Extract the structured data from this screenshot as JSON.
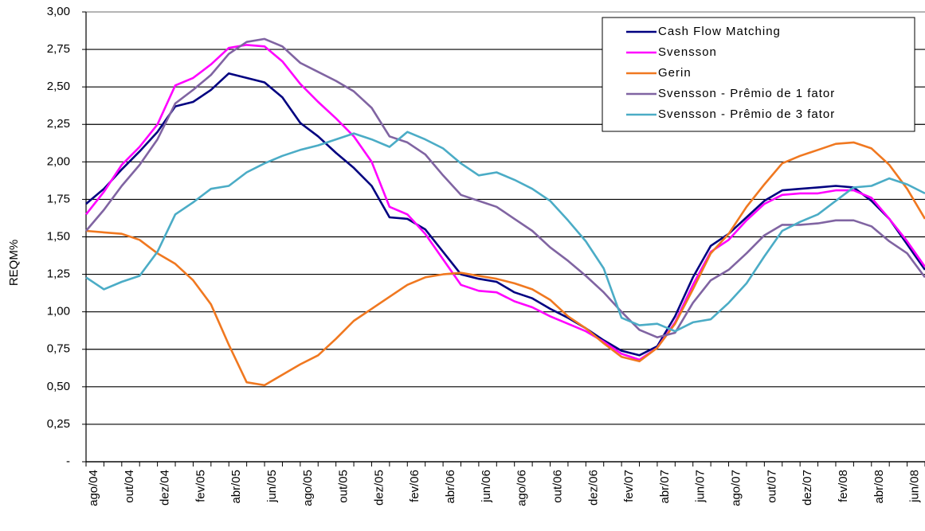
{
  "chart_data": {
    "type": "line",
    "ylabel": "REQM%",
    "categories": [
      "ago/04",
      null,
      "out/04",
      null,
      "dez/04",
      null,
      "fev/05",
      null,
      "abr/05",
      null,
      "jun/05",
      null,
      "ago/05",
      null,
      "out/05",
      null,
      "dez/05",
      null,
      "fev/06",
      null,
      "abr/06",
      null,
      "jun/06",
      null,
      "ago/06",
      null,
      "out/06",
      null,
      "dez/06",
      null,
      "fev/07",
      null,
      "abr/07",
      null,
      "jun/07",
      null,
      "ago/07",
      null,
      "out/07",
      null,
      "dez/07",
      null,
      "fev/08",
      null,
      "abr/08",
      null,
      "jun/08",
      null
    ],
    "series": [
      {
        "name": "Cash Flow Matching",
        "color": "#000080",
        "values": [
          1.72,
          1.82,
          1.95,
          2.07,
          2.2,
          2.37,
          2.4,
          2.48,
          2.59,
          2.56,
          2.53,
          2.43,
          2.26,
          2.17,
          2.06,
          1.96,
          1.84,
          1.63,
          1.62,
          1.55,
          1.4,
          1.25,
          1.22,
          1.2,
          1.13,
          1.09,
          1.02,
          0.96,
          0.89,
          0.81,
          0.74,
          0.71,
          0.77,
          0.97,
          1.23,
          1.44,
          1.52,
          1.63,
          1.74,
          1.81,
          1.82,
          1.83,
          1.84,
          1.83,
          1.74,
          1.62,
          1.45,
          1.28
        ]
      },
      {
        "name": "Svensson",
        "color": "#ff00ff",
        "values": [
          1.65,
          1.8,
          1.98,
          2.1,
          2.25,
          2.51,
          2.56,
          2.65,
          2.76,
          2.78,
          2.77,
          2.67,
          2.52,
          2.4,
          2.29,
          2.17,
          2.0,
          1.7,
          1.65,
          1.52,
          1.35,
          1.18,
          1.14,
          1.13,
          1.07,
          1.03,
          0.97,
          0.92,
          0.87,
          0.8,
          0.72,
          0.68,
          0.76,
          0.93,
          1.18,
          1.4,
          1.48,
          1.61,
          1.72,
          1.78,
          1.79,
          1.79,
          1.81,
          1.81,
          1.76,
          1.62,
          1.47,
          1.3
        ]
      },
      {
        "name": "Gerin",
        "color": "#f07820",
        "values": [
          1.54,
          1.53,
          1.52,
          1.48,
          1.39,
          1.32,
          1.21,
          1.05,
          0.78,
          0.53,
          0.51,
          0.58,
          0.65,
          0.71,
          0.82,
          0.94,
          1.02,
          1.1,
          1.18,
          1.23,
          1.25,
          1.26,
          1.24,
          1.22,
          1.19,
          1.15,
          1.08,
          0.97,
          0.89,
          0.79,
          0.7,
          0.67,
          0.76,
          0.92,
          1.15,
          1.39,
          1.52,
          1.7,
          1.85,
          1.99,
          2.04,
          2.08,
          2.12,
          2.13,
          2.09,
          1.98,
          1.82,
          1.62
        ]
      },
      {
        "name": "Svensson - Prêmio de 1 fator",
        "color": "#8064a2",
        "values": [
          1.54,
          1.68,
          1.84,
          1.98,
          2.15,
          2.39,
          2.48,
          2.58,
          2.72,
          2.8,
          2.82,
          2.77,
          2.66,
          2.6,
          2.54,
          2.47,
          2.36,
          2.17,
          2.13,
          2.05,
          1.91,
          1.78,
          1.74,
          1.7,
          1.62,
          1.54,
          1.43,
          1.34,
          1.24,
          1.13,
          1.0,
          0.88,
          0.83,
          0.86,
          1.06,
          1.21,
          1.28,
          1.39,
          1.51,
          1.58,
          1.58,
          1.59,
          1.61,
          1.61,
          1.57,
          1.47,
          1.39,
          1.23
        ]
      },
      {
        "name": "Svensson - Prêmio de 3 fator",
        "color": "#4bacc6",
        "values": [
          1.23,
          1.15,
          1.2,
          1.24,
          1.4,
          1.65,
          1.73,
          1.82,
          1.84,
          1.93,
          1.99,
          2.04,
          2.08,
          2.11,
          2.15,
          2.19,
          2.15,
          2.1,
          2.2,
          2.15,
          2.09,
          1.99,
          1.91,
          1.93,
          1.88,
          1.82,
          1.74,
          1.61,
          1.47,
          1.29,
          0.96,
          0.91,
          0.92,
          0.87,
          0.93,
          0.95,
          1.06,
          1.19,
          1.37,
          1.54,
          1.6,
          1.65,
          1.74,
          1.83,
          1.84,
          1.89,
          1.85,
          1.79
        ]
      }
    ],
    "ylim": [
      0,
      3
    ],
    "yticks": [
      {
        "value": 0,
        "label": "-"
      },
      {
        "value": 0.25,
        "label": "0,25"
      },
      {
        "value": 0.5,
        "label": "0,50"
      },
      {
        "value": 0.75,
        "label": "0,75"
      },
      {
        "value": 1,
        "label": "1,00"
      },
      {
        "value": 1.25,
        "label": "1,25"
      },
      {
        "value": 1.5,
        "label": "1,50"
      },
      {
        "value": 1.75,
        "label": "1,75"
      },
      {
        "value": 2,
        "label": "2,00"
      },
      {
        "value": 2.25,
        "label": "2,25"
      },
      {
        "value": 2.5,
        "label": "2,50"
      },
      {
        "value": 2.75,
        "label": "2,75"
      },
      {
        "value": 3,
        "label": "3,00"
      }
    ],
    "grid": true,
    "legend": "top-right"
  }
}
